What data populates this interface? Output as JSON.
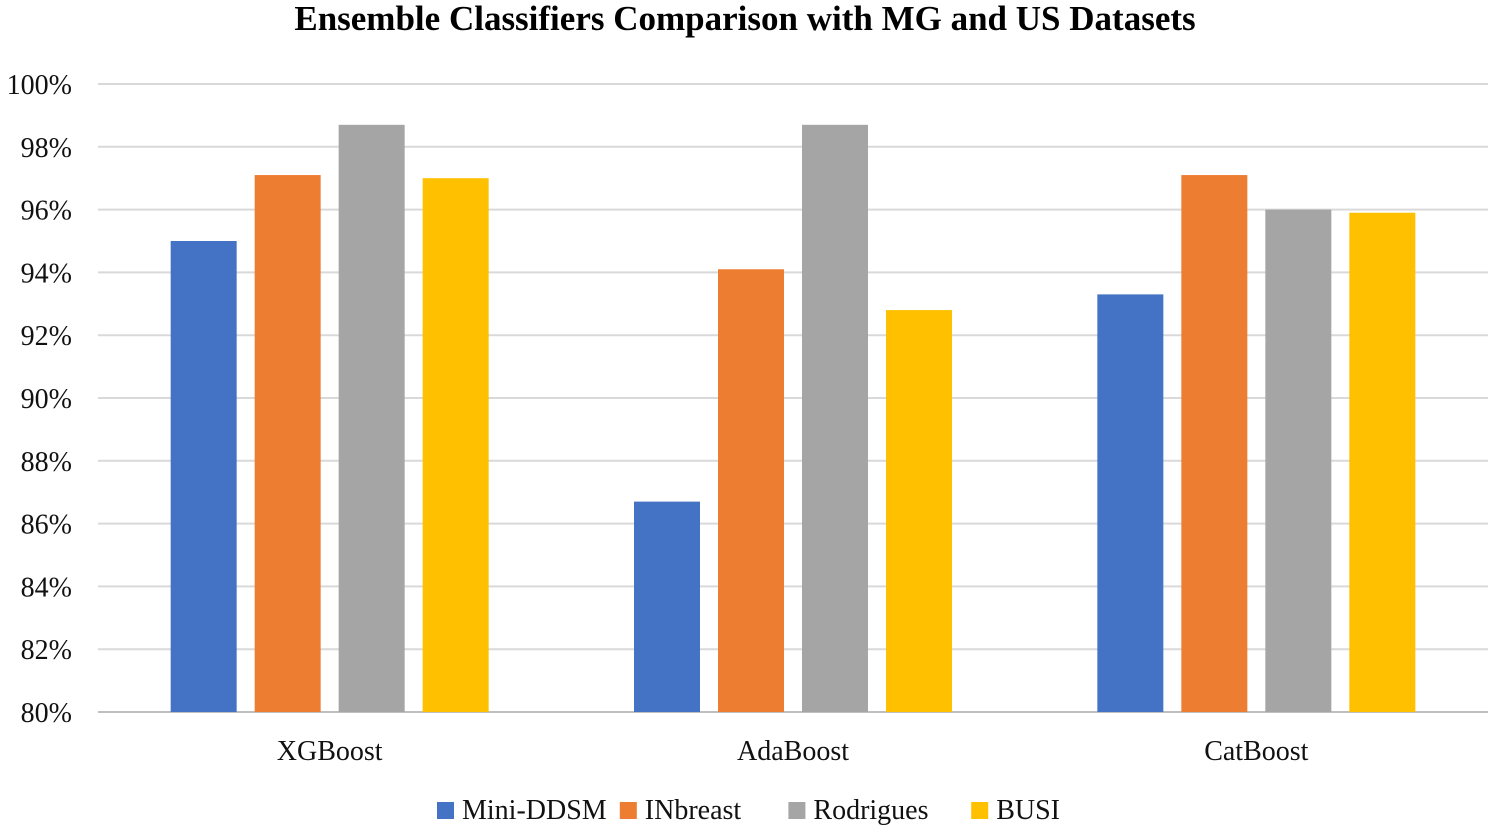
{
  "chart_data": {
    "type": "bar",
    "title": "Ensemble Classifiers Comparison with MG and US Datasets",
    "xlabel": "",
    "ylabel": "",
    "ylim": [
      80,
      100
    ],
    "ytick_step": 2,
    "ytick_suffix": "%",
    "grid": true,
    "legend_position": "bottom",
    "categories": [
      "XGBoost",
      "AdaBoost",
      "CatBoost"
    ],
    "series": [
      {
        "name": "Mini-DDSM",
        "color": "#4472C4",
        "values": [
          95.0,
          86.7,
          93.3
        ]
      },
      {
        "name": "INbreast",
        "color": "#ED7D31",
        "values": [
          97.1,
          94.1,
          97.1
        ]
      },
      {
        "name": "Rodrigues",
        "color": "#A5A5A5",
        "values": [
          98.7,
          98.7,
          96.0
        ]
      },
      {
        "name": "BUSI",
        "color": "#FFC000",
        "values": [
          97.0,
          92.8,
          95.9
        ]
      }
    ]
  }
}
